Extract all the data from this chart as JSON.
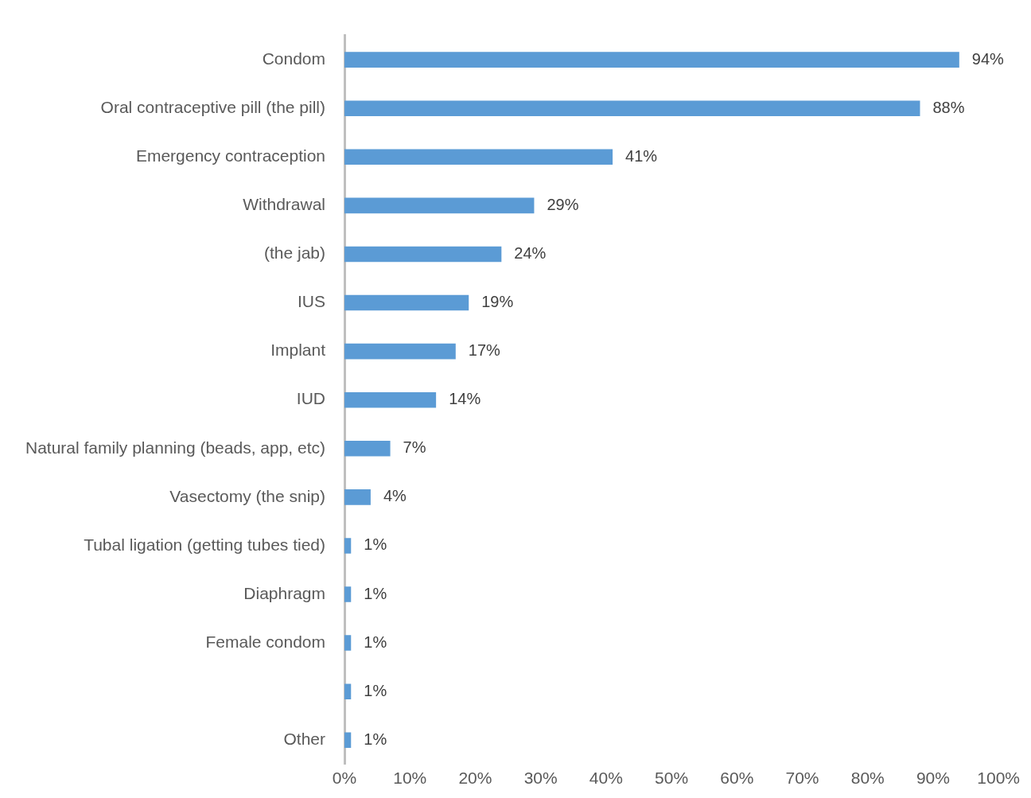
{
  "chart_data": {
    "type": "bar",
    "orientation": "horizontal",
    "categories": [
      "Condom",
      "Oral contraceptive pill (the pill)",
      "Emergency contraception",
      "Withdrawal",
      "(the jab)",
      "IUS",
      "Implant",
      "IUD",
      "Natural family planning (beads, app, etc)",
      "Vasectomy (the snip)",
      "Tubal ligation (getting tubes tied)",
      "Diaphragm",
      "Female condom",
      null,
      "Other"
    ],
    "values": [
      94,
      88,
      41,
      29,
      24,
      19,
      17,
      14,
      7,
      4,
      1,
      1,
      1,
      1,
      1
    ],
    "value_labels": [
      "94%",
      "88%",
      "41%",
      "29%",
      "24%",
      "19%",
      "17%",
      "14%",
      "7%",
      "4%",
      "1%",
      "1%",
      "1%",
      "1%",
      "1%"
    ],
    "color": "#5b9bd5",
    "xlim": [
      0,
      100
    ],
    "xticks": [
      {
        "value": 0,
        "label": "0%"
      },
      {
        "value": 10,
        "label": "10%"
      },
      {
        "value": 20,
        "label": "20%"
      },
      {
        "value": 30,
        "label": "30%"
      },
      {
        "value": 40,
        "label": "40%"
      },
      {
        "value": 50,
        "label": "50%"
      },
      {
        "value": 60,
        "label": "60%"
      },
      {
        "value": 70,
        "label": "70%"
      },
      {
        "value": 80,
        "label": "80%"
      },
      {
        "value": 90,
        "label": "90%"
      },
      {
        "value": 100,
        "label": "100%"
      }
    ],
    "grid": false,
    "legend": false
  }
}
